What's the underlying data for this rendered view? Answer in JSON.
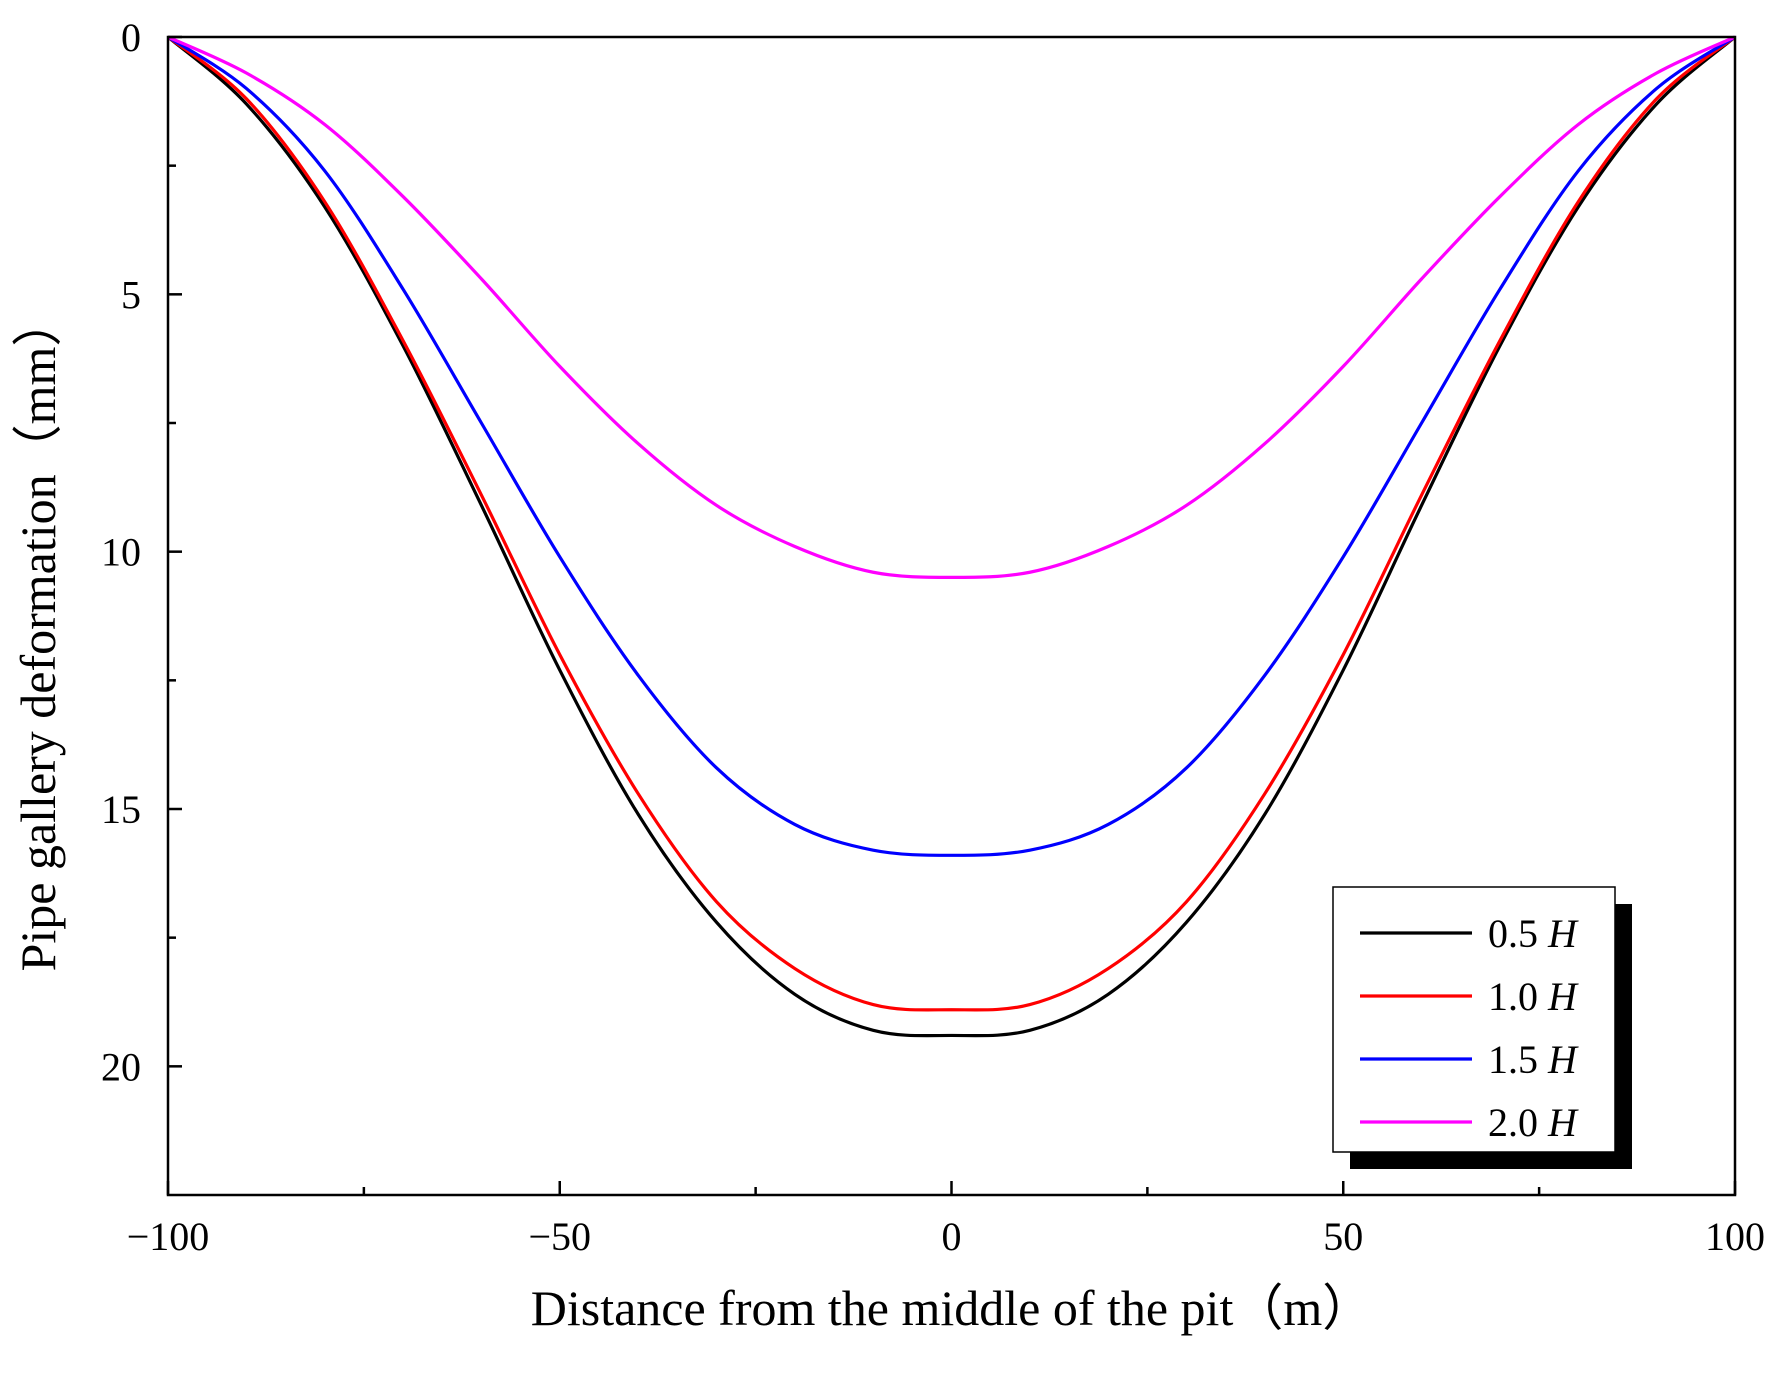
{
  "chart_data": {
    "type": "line",
    "title": "",
    "xlabel": "Distance from the middle of the pit（m）",
    "ylabel": "Pipe gallery deformation（mm）",
    "xlim": [
      -100,
      100
    ],
    "ylim": [
      22.5,
      0
    ],
    "y_inverted": true,
    "x_ticks": [
      -100,
      -50,
      0,
      50,
      100
    ],
    "x_tick_labels": [
      "−100",
      "−50",
      "0",
      "50",
      "100"
    ],
    "y_ticks": [
      0,
      5,
      10,
      15,
      20
    ],
    "y_tick_labels": [
      "0",
      "5",
      "10",
      "15",
      "20"
    ],
    "legend_position": "bottom-right",
    "series": [
      {
        "name": "0.5",
        "unit": "H",
        "color": "#000000",
        "x": [
          -100,
          -90,
          -80,
          -70,
          -60,
          -50,
          -40,
          -30,
          -20,
          -10,
          0,
          10,
          20,
          30,
          40,
          50,
          60,
          70,
          80,
          90,
          100
        ],
        "y": [
          0.0,
          1.3,
          3.3,
          6.0,
          9.1,
          12.3,
          15.1,
          17.2,
          18.6,
          19.3,
          19.4,
          19.3,
          18.6,
          17.2,
          15.1,
          12.3,
          9.1,
          6.0,
          3.3,
          1.3,
          0.0
        ]
      },
      {
        "name": "1.0",
        "unit": "H",
        "color": "#ff0000",
        "x": [
          -100,
          -90,
          -80,
          -70,
          -60,
          -50,
          -40,
          -30,
          -20,
          -10,
          0,
          10,
          20,
          30,
          40,
          50,
          60,
          70,
          80,
          90,
          100
        ],
        "y": [
          0.0,
          1.2,
          3.2,
          5.9,
          8.9,
          12.0,
          14.7,
          16.8,
          18.1,
          18.8,
          18.9,
          18.8,
          18.1,
          16.8,
          14.7,
          12.0,
          8.9,
          5.9,
          3.2,
          1.2,
          0.0
        ]
      },
      {
        "name": "1.5",
        "unit": "H",
        "color": "#0000ff",
        "x": [
          -100,
          -90,
          -80,
          -70,
          -60,
          -50,
          -40,
          -30,
          -20,
          -10,
          0,
          10,
          20,
          30,
          40,
          50,
          60,
          70,
          80,
          90,
          100
        ],
        "y": [
          0.0,
          1.0,
          2.6,
          4.9,
          7.5,
          10.1,
          12.4,
          14.2,
          15.3,
          15.8,
          15.9,
          15.8,
          15.3,
          14.2,
          12.4,
          10.1,
          7.5,
          4.9,
          2.6,
          1.0,
          0.0
        ]
      },
      {
        "name": "2.0",
        "unit": "H",
        "color": "#ff00ff",
        "x": [
          -100,
          -90,
          -80,
          -70,
          -60,
          -50,
          -40,
          -30,
          -20,
          -10,
          0,
          10,
          20,
          30,
          40,
          50,
          60,
          70,
          80,
          90,
          100
        ],
        "y": [
          0.0,
          0.7,
          1.7,
          3.1,
          4.7,
          6.4,
          7.9,
          9.1,
          9.9,
          10.4,
          10.5,
          10.4,
          9.9,
          9.1,
          7.9,
          6.4,
          4.7,
          3.1,
          1.7,
          0.7,
          0.0
        ]
      }
    ]
  }
}
